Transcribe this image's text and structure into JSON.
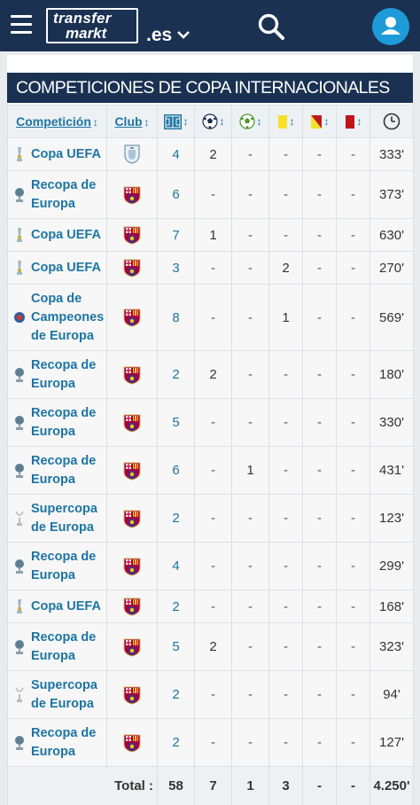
{
  "header": {
    "logo_line1": "transfer",
    "logo_line2": "markt",
    "domain": ".es"
  },
  "box": {
    "title": "COMPETICIONES DE COPA INTERNACIONALES"
  },
  "table": {
    "columns": {
      "competition": "Competición",
      "club": "Club",
      "sort_glyph": "↕"
    },
    "rows": [
      {
        "competition": "Copa UEFA",
        "comp_icon": "uefa-cup-icon",
        "club_icon": "club-crest-generic",
        "apps": "4",
        "goals": "2",
        "assists": "-",
        "yellow": "-",
        "second_yellow": "-",
        "red": "-",
        "minutes": "333'"
      },
      {
        "competition": "Recopa de Europa",
        "comp_icon": "cup-winners-cup-icon",
        "club_icon": "fc-barcelona-crest",
        "apps": "6",
        "goals": "-",
        "assists": "-",
        "yellow": "-",
        "second_yellow": "-",
        "red": "-",
        "minutes": "373'"
      },
      {
        "competition": "Copa UEFA",
        "comp_icon": "uefa-cup-icon",
        "club_icon": "fc-barcelona-crest",
        "apps": "7",
        "goals": "1",
        "assists": "-",
        "yellow": "-",
        "second_yellow": "-",
        "red": "-",
        "minutes": "630'"
      },
      {
        "competition": "Copa UEFA",
        "comp_icon": "uefa-cup-icon",
        "club_icon": "fc-barcelona-crest",
        "apps": "3",
        "goals": "-",
        "assists": "-",
        "yellow": "2",
        "second_yellow": "-",
        "red": "-",
        "minutes": "270'"
      },
      {
        "competition": "Copa de Campeones de Europa",
        "comp_icon": "champions-cup-icon",
        "club_icon": "fc-barcelona-crest",
        "apps": "8",
        "goals": "-",
        "assists": "-",
        "yellow": "1",
        "second_yellow": "-",
        "red": "-",
        "minutes": "569'"
      },
      {
        "competition": "Recopa de Europa",
        "comp_icon": "cup-winners-cup-icon",
        "club_icon": "fc-barcelona-crest",
        "apps": "2",
        "goals": "2",
        "assists": "-",
        "yellow": "-",
        "second_yellow": "-",
        "red": "-",
        "minutes": "180'"
      },
      {
        "competition": "Recopa de Europa",
        "comp_icon": "cup-winners-cup-icon",
        "club_icon": "fc-barcelona-crest",
        "apps": "5",
        "goals": "-",
        "assists": "-",
        "yellow": "-",
        "second_yellow": "-",
        "red": "-",
        "minutes": "330'"
      },
      {
        "competition": "Recopa de Europa",
        "comp_icon": "cup-winners-cup-icon",
        "club_icon": "fc-barcelona-crest",
        "apps": "6",
        "goals": "-",
        "assists": "1",
        "yellow": "-",
        "second_yellow": "-",
        "red": "-",
        "minutes": "431'"
      },
      {
        "competition": "Supercopa de Europa",
        "comp_icon": "super-cup-icon",
        "club_icon": "fc-barcelona-crest",
        "apps": "2",
        "goals": "-",
        "assists": "-",
        "yellow": "-",
        "second_yellow": "-",
        "red": "-",
        "minutes": "123'"
      },
      {
        "competition": "Recopa de Europa",
        "comp_icon": "cup-winners-cup-icon",
        "club_icon": "fc-barcelona-crest",
        "apps": "4",
        "goals": "-",
        "assists": "-",
        "yellow": "-",
        "second_yellow": "-",
        "red": "-",
        "minutes": "299'"
      },
      {
        "competition": "Copa UEFA",
        "comp_icon": "uefa-cup-icon",
        "club_icon": "fc-barcelona-crest",
        "apps": "2",
        "goals": "-",
        "assists": "-",
        "yellow": "-",
        "second_yellow": "-",
        "red": "-",
        "minutes": "168'"
      },
      {
        "competition": "Recopa de Europa",
        "comp_icon": "cup-winners-cup-icon",
        "club_icon": "fc-barcelona-crest",
        "apps": "5",
        "goals": "2",
        "assists": "-",
        "yellow": "-",
        "second_yellow": "-",
        "red": "-",
        "minutes": "323'"
      },
      {
        "competition": "Supercopa de Europa",
        "comp_icon": "super-cup-icon",
        "club_icon": "fc-barcelona-crest",
        "apps": "2",
        "goals": "-",
        "assists": "-",
        "yellow": "-",
        "second_yellow": "-",
        "red": "-",
        "minutes": "94'"
      },
      {
        "competition": "Recopa de Europa",
        "comp_icon": "cup-winners-cup-icon",
        "club_icon": "fc-barcelona-crest",
        "apps": "2",
        "goals": "-",
        "assists": "-",
        "yellow": "-",
        "second_yellow": "-",
        "red": "-",
        "minutes": "127'"
      }
    ],
    "totals": {
      "label": "Total :",
      "apps": "58",
      "goals": "7",
      "assists": "1",
      "yellow": "3",
      "second_yellow": "-",
      "red": "-",
      "minutes": "4.250'"
    }
  },
  "colors": {
    "brand_navy": "#1a3151",
    "link_blue": "#1d75a3",
    "avatar_blue": "#1d9bd8",
    "yellow_card": "#f5e02a",
    "red_card": "#c0161b"
  }
}
